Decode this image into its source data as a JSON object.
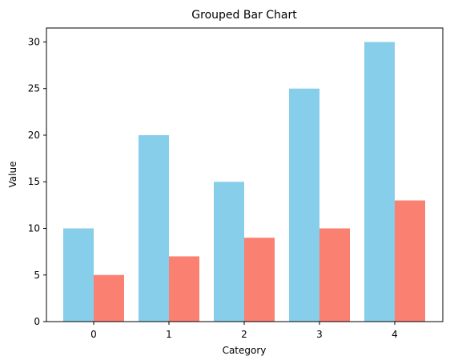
{
  "chart_data": {
    "type": "bar",
    "title": "Grouped Bar Chart",
    "xlabel": "Category",
    "ylabel": "Value",
    "categories": [
      "0",
      "1",
      "2",
      "3",
      "4"
    ],
    "series": [
      {
        "values": [
          10,
          20,
          15,
          25,
          30
        ],
        "color": "#87ceeb"
      },
      {
        "values": [
          5,
          7,
          9,
          10,
          13
        ],
        "color": "#fa8072"
      }
    ],
    "ylim": [
      0,
      31.5
    ],
    "yticks": [
      0,
      5,
      10,
      15,
      20,
      25,
      30
    ],
    "grid": false,
    "legend": "none"
  }
}
